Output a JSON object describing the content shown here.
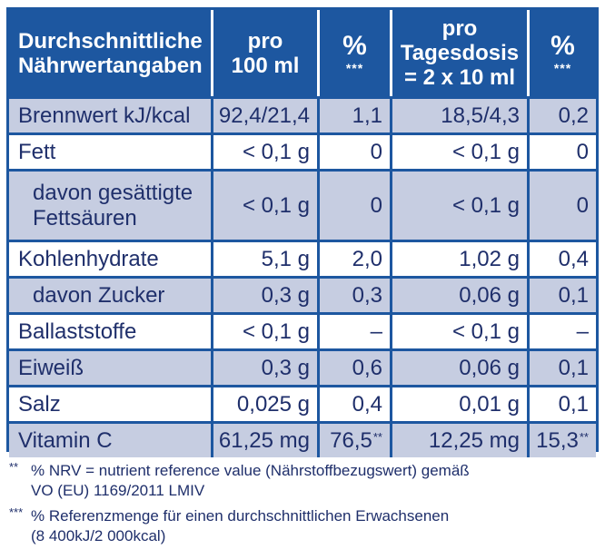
{
  "header": {
    "col1": [
      "Durchschnittliche",
      "Nährwertangaben"
    ],
    "col2": [
      "pro",
      "100 ml"
    ],
    "col3_symbol": "%",
    "col3_stars": "***",
    "col4": [
      "pro",
      "Tagesdosis",
      "= 2 x 10 ml"
    ],
    "col5_symbol": "%",
    "col5_stars": "***"
  },
  "rows": [
    {
      "name": "Brennwert kJ/kcal",
      "v100": "92,4/21,4",
      "p100": "1,1",
      "vday": "18,5/4,3",
      "pday": "0,2"
    },
    {
      "name": "Fett",
      "v100": "< 0,1 g",
      "p100": "0",
      "vday": "< 0,1 g",
      "pday": "0"
    },
    {
      "name_line1": "davon gesättigte",
      "name_line2": "Fettsäuren",
      "v100": "< 0,1 g",
      "p100": "0",
      "vday": "< 0,1 g",
      "pday": "0"
    },
    {
      "name": "Kohlenhydrate",
      "v100": "5,1 g",
      "p100": "2,0",
      "vday": "1,02 g",
      "pday": "0,4"
    },
    {
      "name": "davon Zucker",
      "v100": "0,3 g",
      "p100": "0,3",
      "vday": "0,06 g",
      "pday": "0,1"
    },
    {
      "name": "Ballaststoffe",
      "v100": "< 0,1 g",
      "p100": "–",
      "vday": "< 0,1 g",
      "pday": "–"
    },
    {
      "name": "Eiweiß",
      "v100": "0,3 g",
      "p100": "0,6",
      "vday": "0,06 g",
      "pday": "0,1"
    },
    {
      "name": "Salz",
      "v100": "0,025 g",
      "p100": "0,4",
      "vday": "0,01 g",
      "pday": "0,1"
    },
    {
      "name": "Vitamin C",
      "v100": "61,25 mg",
      "p100": "76,5",
      "p100_mark": "**",
      "vday": "12,25 mg",
      "pday": "15,3",
      "pday_mark": "**"
    }
  ],
  "footnotes": {
    "f1_mark": "**",
    "f1_line1": "% NRV = nutrient reference value (Nährstoffbezugswert) gemäß",
    "f1_line2": "VO (EU) 1169/2011 LMIV",
    "f2_mark": "***",
    "f2_line1": "% Referenzmenge für einen durchschnittlichen Erwachsenen",
    "f2_line2": "(8 400kJ/2 000kcal)"
  },
  "colors": {
    "blue": "#1d57a0",
    "shade": "#c6cde1",
    "text": "#1f2f6b"
  }
}
